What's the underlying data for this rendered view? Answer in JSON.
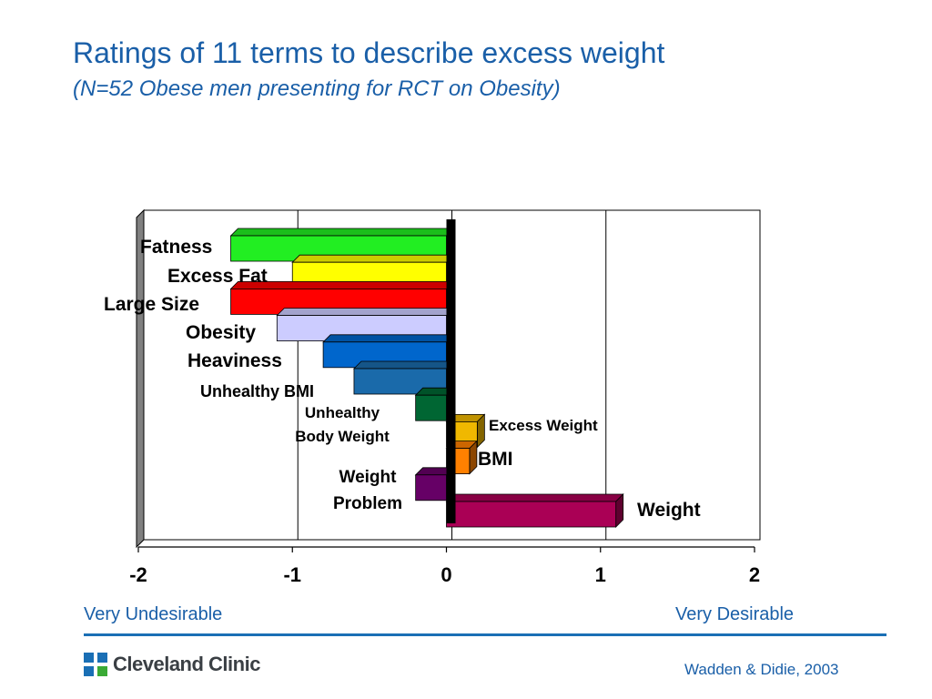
{
  "slide": {
    "title": "Ratings of 11 terms to describe excess weight",
    "subtitle": "(N=52 Obese men presenting for RCT on Obesity)",
    "scale_left": "Very Undesirable",
    "scale_right": "Very Desirable",
    "citation": "Wadden & Didie, 2003",
    "logo_text": "Cleveland Clinic",
    "brand_color": "#1a5fa8"
  },
  "chart_data": {
    "type": "bar",
    "orientation": "horizontal",
    "xlim": [
      -2,
      2
    ],
    "x_ticks": [
      "-2",
      "-1",
      "0",
      "1",
      "2"
    ],
    "grid": true,
    "legend": "none",
    "categories": [
      "Fatness",
      "Excess Fat",
      "Large Size",
      "Obesity",
      "Heaviness",
      "Unhealthy BMI",
      "Unhealthy Body Weight",
      "Excess Weight",
      "BMI",
      "Weight Problem",
      "Weight"
    ],
    "label_lines": [
      [
        "Fatness"
      ],
      [
        "Excess Fat"
      ],
      [
        "Large Size"
      ],
      [
        "Obesity"
      ],
      [
        "Heaviness"
      ],
      [
        "Unhealthy BMI"
      ],
      [
        "Unhealthy",
        "Body Weight"
      ],
      [
        "Excess Weight"
      ],
      [
        "BMI"
      ],
      [
        "Weight",
        "Problem"
      ],
      [
        "Weight"
      ]
    ],
    "values": [
      -1.4,
      -1.0,
      -1.4,
      -1.1,
      -0.8,
      -0.6,
      -0.2,
      0.2,
      0.15,
      -0.2,
      1.1
    ],
    "colors": [
      "#22ee22",
      "#ffff00",
      "#ff0000",
      "#ccccff",
      "#0066cc",
      "#1a6aaa",
      "#006633",
      "#f0b800",
      "#ff8000",
      "#660066",
      "#aa0055"
    ]
  }
}
